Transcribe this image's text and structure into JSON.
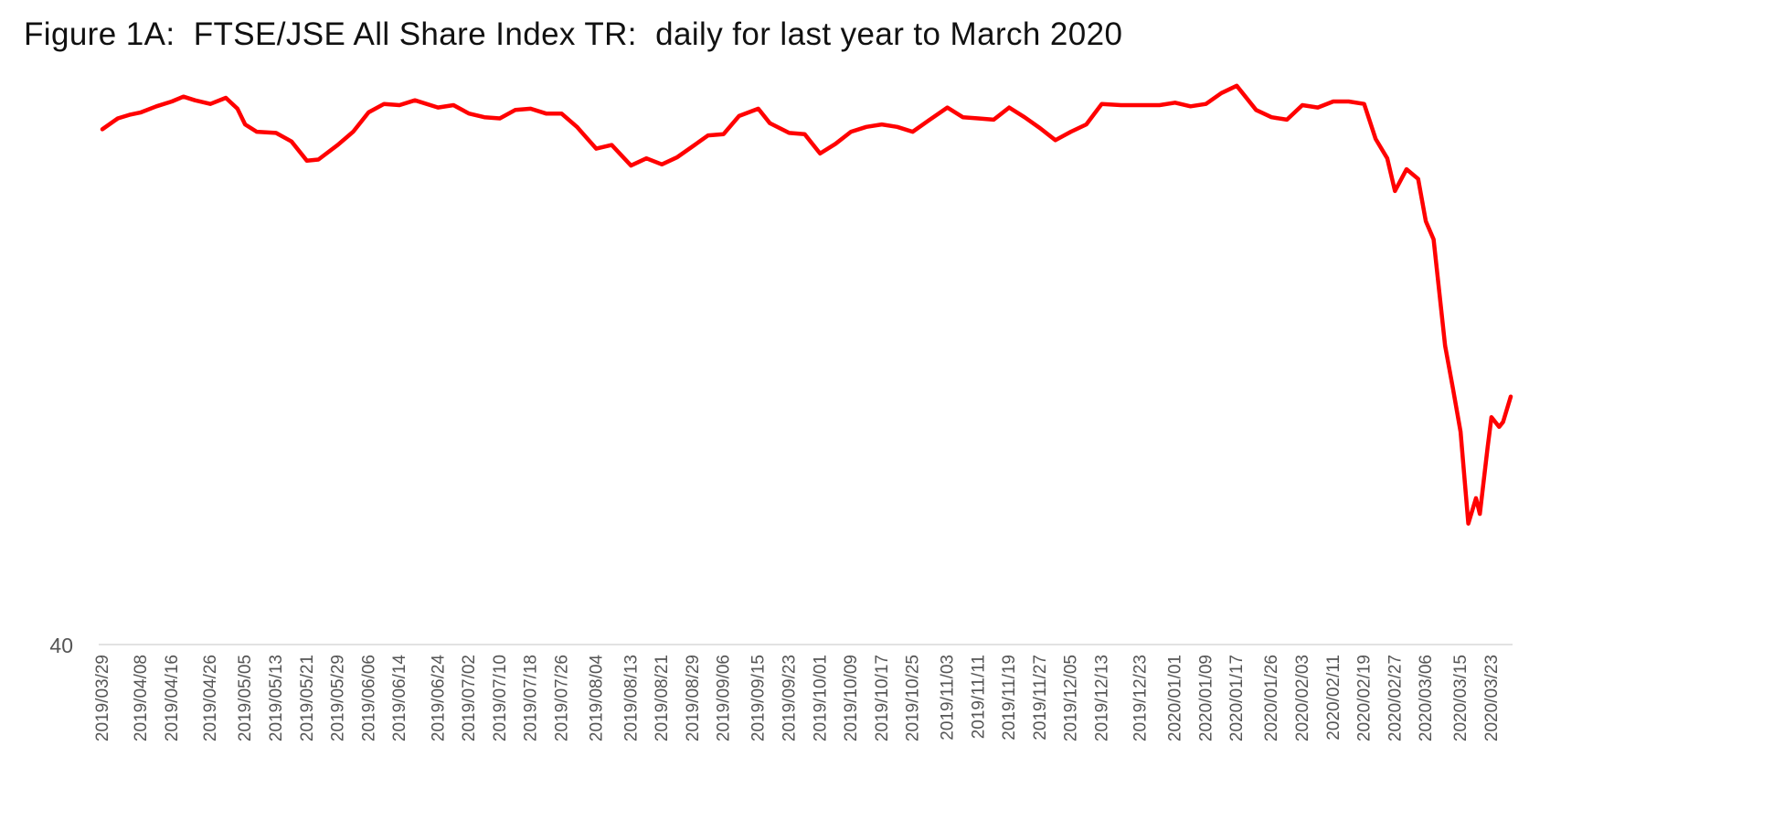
{
  "chart_data": {
    "type": "line",
    "title": "Figure 1A:  FTSE/JSE All Share Index TR:  daily for last year to March 2020",
    "xlabel": "",
    "ylabel": "",
    "y_ticks": [
      "40"
    ],
    "ylim": [
      40,
      88
    ],
    "grid": false,
    "legend": "none",
    "line_color": "#ff0000",
    "axis_color": "#d9d9d9",
    "x_tick_labels": [
      "2019/03/29",
      "2019/04/08",
      "2019/04/16",
      "2019/04/26",
      "2019/05/05",
      "2019/05/13",
      "2019/05/21",
      "2019/05/29",
      "2019/06/06",
      "2019/06/14",
      "2019/06/24",
      "2019/07/02",
      "2019/07/10",
      "2019/07/18",
      "2019/07/26",
      "2019/08/04",
      "2019/08/13",
      "2019/08/21",
      "2019/08/29",
      "2019/09/06",
      "2019/09/15",
      "2019/09/23",
      "2019/10/01",
      "2019/10/09",
      "2019/10/17",
      "2019/10/25",
      "2019/11/03",
      "2019/11/11",
      "2019/11/19",
      "2019/11/27",
      "2019/12/05",
      "2019/12/13",
      "2019/12/23",
      "2020/01/01",
      "2020/01/09",
      "2020/01/17",
      "2020/01/26",
      "2020/02/03",
      "2020/02/11",
      "2020/02/19",
      "2020/02/27",
      "2020/03/06",
      "2020/03/15",
      "2020/03/23"
    ],
    "series": [
      {
        "points": [
          [
            "2019/03/29",
            82.6
          ],
          [
            "2019/04/02",
            83.5
          ],
          [
            "2019/04/05",
            83.8
          ],
          [
            "2019/04/08",
            84.0
          ],
          [
            "2019/04/12",
            84.5
          ],
          [
            "2019/04/16",
            84.9
          ],
          [
            "2019/04/19",
            85.3
          ],
          [
            "2019/04/22",
            85.0
          ],
          [
            "2019/04/26",
            84.7
          ],
          [
            "2019/04/30",
            85.2
          ],
          [
            "2019/05/03",
            84.3
          ],
          [
            "2019/05/05",
            83.0
          ],
          [
            "2019/05/08",
            82.4
          ],
          [
            "2019/05/13",
            82.3
          ],
          [
            "2019/05/17",
            81.6
          ],
          [
            "2019/05/21",
            80.0
          ],
          [
            "2019/05/24",
            80.1
          ],
          [
            "2019/05/29",
            81.3
          ],
          [
            "2019/06/02",
            82.4
          ],
          [
            "2019/06/06",
            84.0
          ],
          [
            "2019/06/10",
            84.7
          ],
          [
            "2019/06/14",
            84.6
          ],
          [
            "2019/06/18",
            85.0
          ],
          [
            "2019/06/24",
            84.4
          ],
          [
            "2019/06/28",
            84.6
          ],
          [
            "2019/07/02",
            83.9
          ],
          [
            "2019/07/06",
            83.6
          ],
          [
            "2019/07/10",
            83.5
          ],
          [
            "2019/07/14",
            84.2
          ],
          [
            "2019/07/18",
            84.3
          ],
          [
            "2019/07/22",
            83.9
          ],
          [
            "2019/07/26",
            83.9
          ],
          [
            "2019/07/30",
            82.8
          ],
          [
            "2019/08/04",
            81.0
          ],
          [
            "2019/08/08",
            81.3
          ],
          [
            "2019/08/13",
            79.6
          ],
          [
            "2019/08/17",
            80.2
          ],
          [
            "2019/08/21",
            79.7
          ],
          [
            "2019/08/25",
            80.3
          ],
          [
            "2019/08/29",
            81.2
          ],
          [
            "2019/09/02",
            82.1
          ],
          [
            "2019/09/06",
            82.2
          ],
          [
            "2019/09/10",
            83.7
          ],
          [
            "2019/09/15",
            84.3
          ],
          [
            "2019/09/18",
            83.1
          ],
          [
            "2019/09/23",
            82.3
          ],
          [
            "2019/09/27",
            82.2
          ],
          [
            "2019/10/01",
            80.6
          ],
          [
            "2019/10/05",
            81.4
          ],
          [
            "2019/10/09",
            82.4
          ],
          [
            "2019/10/13",
            82.8
          ],
          [
            "2019/10/17",
            83.0
          ],
          [
            "2019/10/21",
            82.8
          ],
          [
            "2019/10/25",
            82.4
          ],
          [
            "2019/10/29",
            83.3
          ],
          [
            "2019/11/03",
            84.4
          ],
          [
            "2019/11/07",
            83.6
          ],
          [
            "2019/11/11",
            83.5
          ],
          [
            "2019/11/15",
            83.4
          ],
          [
            "2019/11/19",
            84.4
          ],
          [
            "2019/11/23",
            83.6
          ],
          [
            "2019/11/27",
            82.7
          ],
          [
            "2019/12/01",
            81.7
          ],
          [
            "2019/12/05",
            82.4
          ],
          [
            "2019/12/09",
            83.0
          ],
          [
            "2019/12/13",
            84.7
          ],
          [
            "2019/12/18",
            84.6
          ],
          [
            "2019/12/23",
            84.6
          ],
          [
            "2019/12/28",
            84.6
          ],
          [
            "2020/01/01",
            84.8
          ],
          [
            "2020/01/05",
            84.5
          ],
          [
            "2020/01/09",
            84.7
          ],
          [
            "2020/01/13",
            85.6
          ],
          [
            "2020/01/17",
            86.2
          ],
          [
            "2020/01/22",
            84.2
          ],
          [
            "2020/01/26",
            83.6
          ],
          [
            "2020/01/30",
            83.4
          ],
          [
            "2020/02/03",
            84.6
          ],
          [
            "2020/02/07",
            84.4
          ],
          [
            "2020/02/11",
            84.9
          ],
          [
            "2020/02/15",
            84.9
          ],
          [
            "2020/02/19",
            84.7
          ],
          [
            "2020/02/22",
            81.8
          ],
          [
            "2020/02/25",
            80.2
          ],
          [
            "2020/02/27",
            77.5
          ],
          [
            "2020/03/01",
            79.3
          ],
          [
            "2020/03/04",
            78.5
          ],
          [
            "2020/03/06",
            75.0
          ],
          [
            "2020/03/08",
            73.5
          ],
          [
            "2020/03/11",
            64.7
          ],
          [
            "2020/03/13",
            61.2
          ],
          [
            "2020/03/15",
            57.6
          ],
          [
            "2020/03/17",
            50.0
          ],
          [
            "2020/03/19",
            52.1
          ],
          [
            "2020/03/20",
            50.8
          ],
          [
            "2020/03/22",
            56.3
          ],
          [
            "2020/03/23",
            58.8
          ],
          [
            "2020/03/25",
            58.0
          ],
          [
            "2020/03/26",
            58.4
          ],
          [
            "2020/03/28",
            60.5
          ]
        ]
      }
    ]
  }
}
